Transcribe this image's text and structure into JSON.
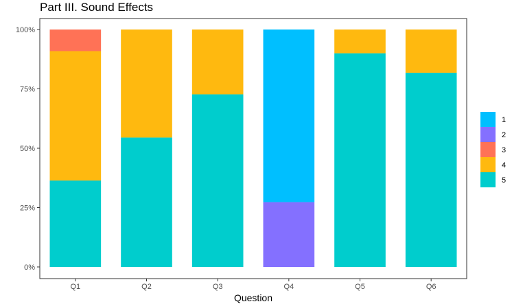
{
  "chart_data": {
    "type": "bar",
    "stacked": true,
    "percent": true,
    "title": "Part III. Sound Effects",
    "xlabel": "Question",
    "ylabel": "",
    "categories": [
      "Q1",
      "Q2",
      "Q3",
      "Q4",
      "Q5",
      "Q6"
    ],
    "yticks": [
      "0%",
      "25%",
      "50%",
      "75%",
      "100%"
    ],
    "ylim": [
      0,
      100
    ],
    "legend_position": "right",
    "series": [
      {
        "name": "5",
        "color": "#00CDCD",
        "values": [
          36.4,
          54.5,
          72.7,
          0,
          90.0,
          81.8
        ]
      },
      {
        "name": "4",
        "color": "#FFB90F",
        "values": [
          54.5,
          45.5,
          27.3,
          0,
          10.0,
          18.2
        ]
      },
      {
        "name": "3",
        "color": "#FF7256",
        "values": [
          9.1,
          0,
          0,
          0,
          0,
          0
        ]
      },
      {
        "name": "2",
        "color": "#8470FF",
        "values": [
          0,
          0,
          0,
          27.3,
          0,
          0
        ]
      },
      {
        "name": "1",
        "color": "#00BFFF",
        "values": [
          0,
          0,
          0,
          72.7,
          0,
          0
        ]
      }
    ],
    "legend_order": [
      "1",
      "2",
      "3",
      "4",
      "5"
    ]
  }
}
